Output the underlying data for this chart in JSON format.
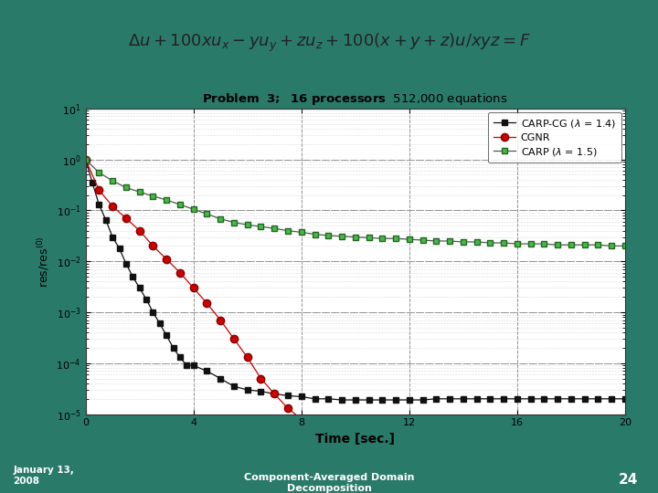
{
  "outer_bg": "#2a7a6a",
  "chart_bg": "#ffffff",
  "formula_box_bg": "#ffffff",
  "title_bold_part": "Problem  3;  16 processors",
  "title_normal_part": " 512,000 equations",
  "xlabel": "Time [sec.]",
  "ylabel_str": "res/res$^{(0)}$",
  "xlim": [
    0,
    20
  ],
  "bottom_left": "January 13, 2008",
  "bottom_center": "Component-Averaged Domain Decomposition",
  "bottom_right": "24",
  "legend_labels": [
    "CARP-CG (λ = 1.4)",
    "CGNR",
    "CARP (λ = 1.5)"
  ],
  "carp_cg_x": [
    0.0,
    0.25,
    0.5,
    0.75,
    1.0,
    1.25,
    1.5,
    1.75,
    2.0,
    2.25,
    2.5,
    2.75,
    3.0,
    3.25,
    3.5,
    3.75,
    4.0,
    4.5,
    5.0,
    5.5,
    6.0,
    6.5,
    7.0,
    7.5,
    8.0,
    8.5,
    9.0,
    9.5,
    10.0,
    10.5,
    11.0,
    11.5,
    12.0,
    12.5,
    13.0,
    13.5,
    14.0,
    14.5,
    15.0,
    15.5,
    16.0,
    16.5,
    17.0,
    17.5,
    18.0,
    18.5,
    19.0,
    19.5,
    20.0
  ],
  "carp_cg_y": [
    1.0,
    0.35,
    0.13,
    0.065,
    0.03,
    0.018,
    0.009,
    0.005,
    0.003,
    0.0018,
    0.001,
    0.0006,
    0.00035,
    0.0002,
    0.00013,
    9e-05,
    9e-05,
    7e-05,
    5e-05,
    3.5e-05,
    3e-05,
    2.8e-05,
    2.5e-05,
    2.3e-05,
    2.2e-05,
    2e-05,
    2e-05,
    1.9e-05,
    1.9e-05,
    1.9e-05,
    1.9e-05,
    1.9e-05,
    1.9e-05,
    1.9e-05,
    2e-05,
    2e-05,
    2e-05,
    2e-05,
    2e-05,
    2e-05,
    2e-05,
    2e-05,
    2e-05,
    2e-05,
    2e-05,
    2e-05,
    2e-05,
    2e-05,
    2e-05
  ],
  "cgnr_x": [
    0.0,
    0.5,
    1.0,
    1.5,
    2.0,
    2.5,
    3.0,
    3.5,
    4.0,
    4.5,
    5.0,
    5.5,
    6.0,
    6.5,
    7.0,
    7.5,
    8.0,
    8.5,
    9.0,
    9.5,
    10.0,
    10.5,
    11.0,
    11.5,
    12.0,
    12.5,
    13.0,
    13.5,
    14.0,
    14.5,
    15.0,
    15.5,
    16.0,
    16.5,
    17.0,
    17.5,
    18.0,
    18.5,
    19.0,
    19.5,
    20.0
  ],
  "cgnr_y": [
    1.0,
    0.25,
    0.12,
    0.07,
    0.04,
    0.02,
    0.011,
    0.006,
    0.003,
    0.0015,
    0.0007,
    0.0003,
    0.00013,
    5e-05,
    2.5e-05,
    1.3e-05,
    8e-06,
    6e-06,
    5e-06,
    5e-06,
    5e-06,
    5e-06,
    5e-06,
    5e-06,
    5e-06,
    5e-06,
    5e-06,
    5e-06,
    5e-06,
    5e-06,
    5e-06,
    5e-06,
    5e-06,
    5e-06,
    5e-06,
    5e-06,
    5e-06,
    5e-06,
    5e-06,
    5e-06,
    5e-06
  ],
  "carp_x": [
    0.0,
    0.5,
    1.0,
    1.5,
    2.0,
    2.5,
    3.0,
    3.5,
    4.0,
    4.5,
    5.0,
    5.5,
    6.0,
    6.5,
    7.0,
    7.5,
    8.0,
    8.5,
    9.0,
    9.5,
    10.0,
    10.5,
    11.0,
    11.5,
    12.0,
    12.5,
    13.0,
    13.5,
    14.0,
    14.5,
    15.0,
    15.5,
    16.0,
    16.5,
    17.0,
    17.5,
    18.0,
    18.5,
    19.0,
    19.5,
    20.0
  ],
  "carp_y": [
    1.0,
    0.55,
    0.38,
    0.28,
    0.23,
    0.19,
    0.16,
    0.13,
    0.105,
    0.085,
    0.068,
    0.058,
    0.052,
    0.048,
    0.044,
    0.04,
    0.037,
    0.034,
    0.032,
    0.031,
    0.03,
    0.029,
    0.028,
    0.028,
    0.027,
    0.026,
    0.025,
    0.025,
    0.024,
    0.024,
    0.023,
    0.023,
    0.022,
    0.022,
    0.022,
    0.021,
    0.021,
    0.021,
    0.021,
    0.02,
    0.02
  ]
}
